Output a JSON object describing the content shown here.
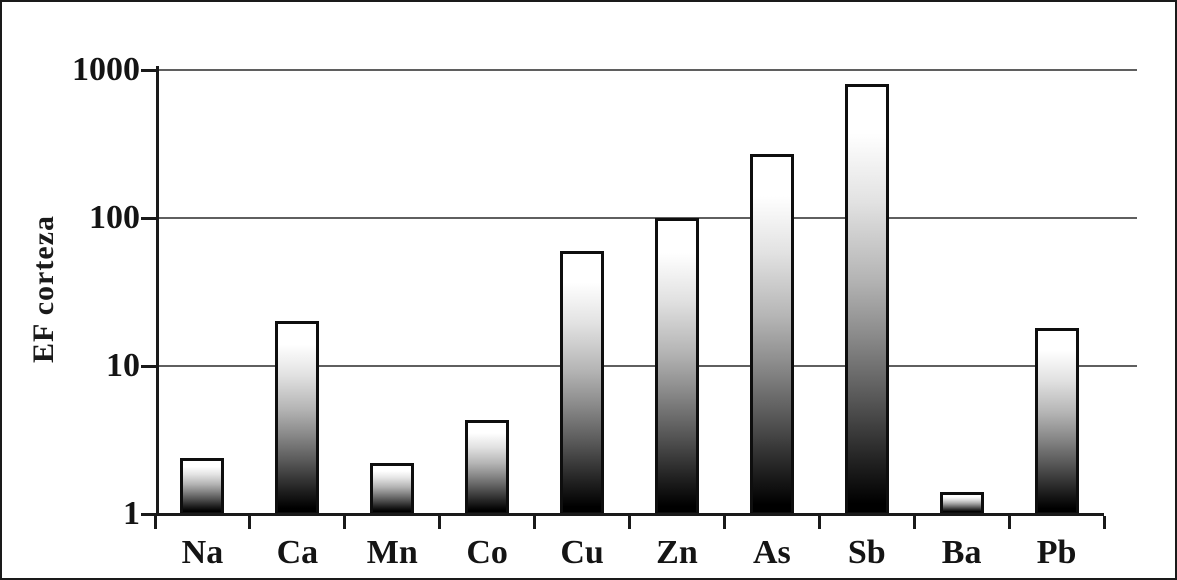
{
  "figure": {
    "background_color": "#ffffff",
    "border_color": "#1a1a1a"
  },
  "chart_data": {
    "type": "bar",
    "title": "",
    "xlabel": "",
    "ylabel": "EF corteza",
    "categories": [
      "Na",
      "Ca",
      "Mn",
      "Co",
      "Cu",
      "Zn",
      "As",
      "Sb",
      "Ba",
      "Pb"
    ],
    "values": [
      2.4,
      20,
      2.2,
      4.3,
      60,
      100,
      270,
      800,
      1.4,
      18
    ],
    "y_scale": "log",
    "ylim": [
      1,
      1000
    ],
    "yticks": [
      1,
      10,
      100,
      1000
    ],
    "ytick_labels": [
      "1",
      "10",
      "100",
      "1000"
    ],
    "grid": true,
    "legend": false,
    "bar_fill_top_color": "#ffffff",
    "bar_fill_bottom_color": "#000000",
    "bar_border_color": "#0e0e0e",
    "gridline_color": "#5f5f5f",
    "axis_color": "#1a1a1a",
    "text_color": "#141414"
  }
}
